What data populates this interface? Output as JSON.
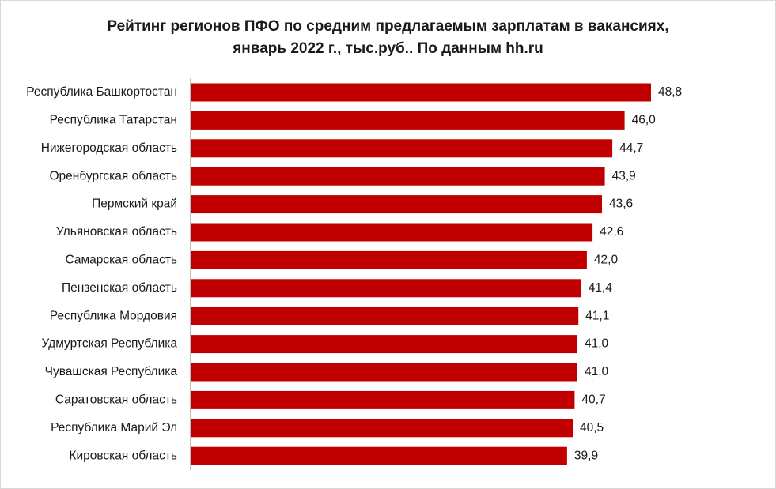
{
  "chart_data": {
    "type": "bar",
    "orientation": "horizontal",
    "title": "Рейтинг регионов ПФО по средним предлагаемым зарплатам в вакансиях, январь 2022 г., тыс.руб.. По данным hh.ru",
    "title_lines": [
      "Рейтинг регионов ПФО по средним предлагаемым зарплатам в вакансиях,",
      "январь 2022 г., тыс.руб.. По данным hh.ru"
    ],
    "categories": [
      "Республика Башкортостан",
      "Республика Татарстан",
      "Нижегородская область",
      "Оренбургская область",
      "Пермский край",
      "Ульяновская область",
      "Самарская область",
      "Пензенская область",
      "Республика Мордовия",
      "Удмуртская Республика",
      "Чувашская Республика",
      "Саратовская область",
      "Республика Марий Эл",
      "Кировская область"
    ],
    "values": [
      48.8,
      46.0,
      44.7,
      43.9,
      43.6,
      42.6,
      42.0,
      41.4,
      41.1,
      41.0,
      41.0,
      40.7,
      40.5,
      39.9
    ],
    "value_labels": [
      "48,8",
      "46,0",
      "44,7",
      "43,9",
      "43,6",
      "42,6",
      "42,0",
      "41,4",
      "41,1",
      "41,0",
      "41,0",
      "40,7",
      "40,5",
      "39,9"
    ],
    "xlim": [
      0,
      48.8
    ],
    "xlabel": "",
    "ylabel": "",
    "grid": false,
    "legend": "none",
    "bar_color": "#c00000"
  }
}
